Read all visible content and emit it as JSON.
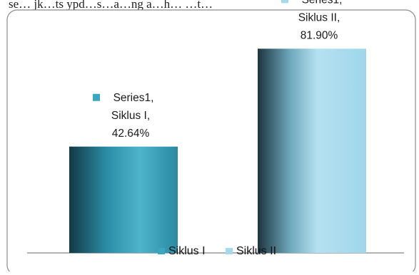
{
  "top_caption": "se… jk…ts ypd…s…a…ng a…h… …t…",
  "chart_data": {
    "type": "bar",
    "categories": [
      "Siklus I",
      "Siklus II"
    ],
    "series": [
      {
        "name": "Series1",
        "values": [
          42.64,
          81.9
        ],
        "value_labels": [
          "42.64%",
          "81.90%"
        ],
        "colors": [
          "#3aa6bf",
          "#a7d9ec"
        ]
      }
    ],
    "data_labels": [
      [
        "Series1,",
        "Siklus I,",
        "42.64%"
      ],
      [
        "Series1,",
        "Siklus II,",
        "81.90%"
      ]
    ],
    "legend": {
      "position": "bottom",
      "entries": [
        "Siklus I",
        "Siklus II"
      ]
    },
    "ylim": [
      0,
      100
    ],
    "grid": false
  }
}
